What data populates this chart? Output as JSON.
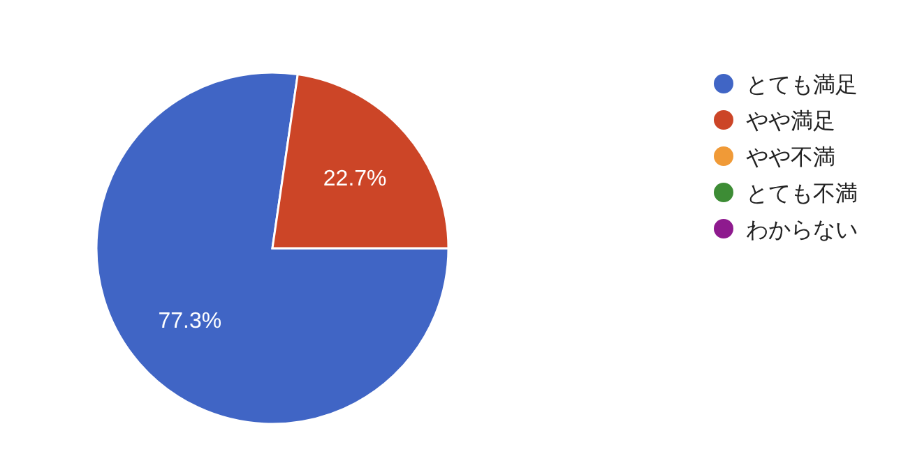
{
  "chart_data": {
    "type": "pie",
    "categories": [
      "とても満足",
      "やや満足",
      "やや不満",
      "とても不満",
      "わからない"
    ],
    "values": [
      77.3,
      22.7,
      0,
      0,
      0
    ],
    "colors": [
      "#4065c5",
      "#cc4527",
      "#f09a37",
      "#3d8c35",
      "#8e1a8e"
    ],
    "value_labels": [
      "77.3%",
      "22.7%",
      null,
      null,
      null
    ],
    "legend": "right"
  }
}
